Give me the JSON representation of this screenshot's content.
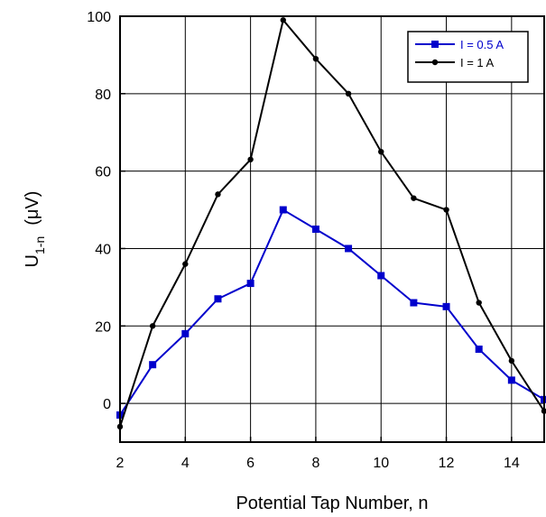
{
  "chart_data": {
    "type": "line",
    "xlabel": "Potential Tap Number, n",
    "ylabel": "U",
    "ylabel_sub": "1-n",
    "ylabel_unit": "(μV)",
    "xlim": [
      2,
      15
    ],
    "ylim": [
      -10,
      100
    ],
    "xticks": [
      2,
      4,
      6,
      8,
      10,
      12,
      14
    ],
    "yticks": [
      0,
      20,
      40,
      60,
      80,
      100
    ],
    "grid": true,
    "legend_position": "top-right",
    "x": [
      2,
      3,
      4,
      5,
      6,
      7,
      8,
      9,
      10,
      11,
      12,
      13,
      14,
      15
    ],
    "series": [
      {
        "name": "I = 0.5 A",
        "color": "#0000cc",
        "marker": "square",
        "values": [
          -3,
          10,
          18,
          27,
          31,
          50,
          45,
          40,
          33,
          26,
          25,
          14,
          6,
          1
        ]
      },
      {
        "name": "I = 1 A",
        "color": "#000000",
        "marker": "circle",
        "values": [
          -6,
          20,
          36,
          54,
          63,
          99,
          89,
          80,
          65,
          53,
          50,
          26,
          11,
          -2
        ]
      }
    ]
  }
}
